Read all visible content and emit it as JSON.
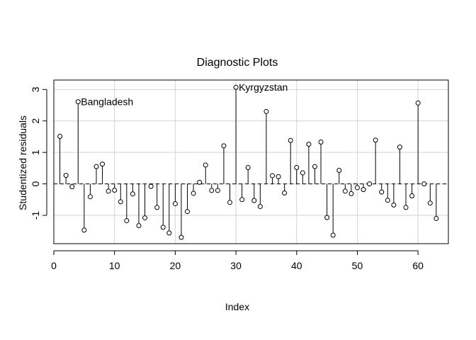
{
  "chart_data": {
    "type": "scatter",
    "style": "index plot with vertical stems to zero, open circle markers",
    "title": "Diagnostic Plots",
    "xlabel": "Index",
    "ylabel": "Studentized residuals",
    "xlim": [
      0,
      65
    ],
    "ylim": [
      -1.9,
      3.3
    ],
    "xticks": [
      0,
      10,
      20,
      30,
      40,
      50,
      60
    ],
    "yticks": [
      -1,
      0,
      1,
      2,
      3
    ],
    "grid": true,
    "reference_line": {
      "y": 0,
      "style": "dashed"
    },
    "x": [
      1,
      2,
      3,
      4,
      5,
      6,
      7,
      8,
      9,
      10,
      11,
      12,
      13,
      14,
      15,
      16,
      17,
      18,
      19,
      20,
      21,
      22,
      23,
      24,
      25,
      26,
      27,
      28,
      29,
      30,
      31,
      32,
      33,
      34,
      35,
      36,
      37,
      38,
      39,
      40,
      41,
      42,
      43,
      44,
      45,
      46,
      47,
      48,
      49,
      50,
      51,
      52,
      53,
      54,
      55,
      56,
      57,
      58,
      59,
      60,
      61,
      62,
      63
    ],
    "values": [
      1.51,
      0.27,
      -0.09,
      2.61,
      -1.47,
      -0.41,
      0.55,
      0.63,
      -0.23,
      -0.2,
      -0.57,
      -1.17,
      -0.32,
      -1.33,
      -1.08,
      -0.08,
      -0.75,
      -1.38,
      -1.56,
      -0.63,
      -1.7,
      -0.88,
      -0.3,
      0.05,
      0.6,
      -0.21,
      -0.21,
      1.21,
      -0.59,
      3.07,
      -0.5,
      0.52,
      -0.53,
      -0.72,
      2.3,
      0.26,
      0.23,
      -0.29,
      1.38,
      0.52,
      0.35,
      1.26,
      0.55,
      1.33,
      -1.07,
      -1.63,
      0.43,
      -0.23,
      -0.31,
      -0.12,
      -0.18,
      0.0,
      1.39,
      -0.26,
      -0.52,
      -0.67,
      1.17,
      -0.75,
      -0.38,
      2.57,
      0.0,
      -0.61,
      -1.1
    ],
    "annotations": [
      {
        "x": 4,
        "y": 2.61,
        "text": "Bangladesh"
      },
      {
        "x": 30,
        "y": 3.07,
        "text": "Kyrgyzstan"
      }
    ],
    "colors": {
      "line": "#000000",
      "grid": "#d3d3d3",
      "frame": "#000000"
    }
  }
}
